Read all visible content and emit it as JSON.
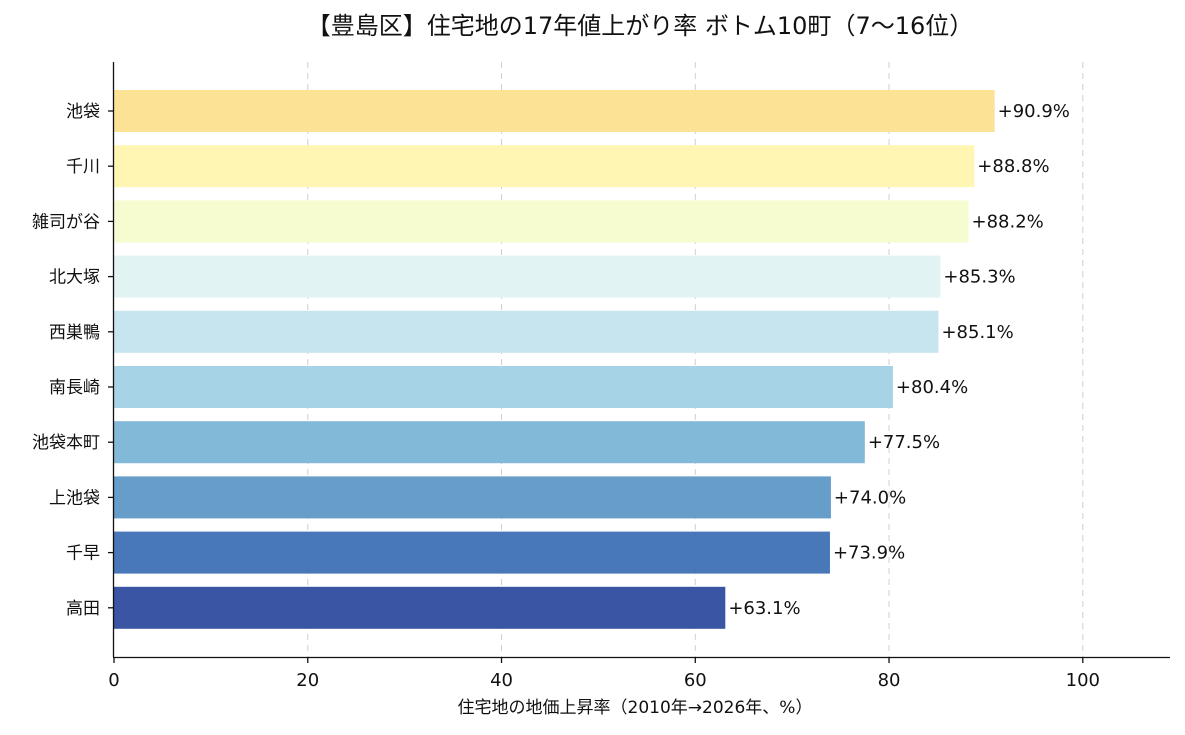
{
  "chart_data": {
    "type": "bar",
    "orientation": "horizontal",
    "title": "【豊島区】住宅地の17年値上がり率 ボトム10町（7〜16位）",
    "xlabel": "住宅地の地価上昇率（2010年→2026年、%）",
    "ylabel": "",
    "xlim": [
      0,
      109
    ],
    "xticks": [
      "0",
      "20",
      "40",
      "60",
      "80",
      "100"
    ],
    "grid": "x-dashed",
    "categories": [
      "池袋",
      "千川",
      "雑司が谷",
      "北大塚",
      "西巣鴨",
      "南長崎",
      "池袋本町",
      "上池袋",
      "千早",
      "高田"
    ],
    "values": [
      90.9,
      88.8,
      88.2,
      85.3,
      85.1,
      80.4,
      77.5,
      74.0,
      73.9,
      63.1
    ],
    "value_labels": [
      "+90.9%",
      "+88.8%",
      "+88.2%",
      "+85.3%",
      "+85.1%",
      "+80.4%",
      "+77.5%",
      "+74.0%",
      "+73.9%",
      "+63.1%"
    ],
    "colors": [
      "#fce294",
      "#fff6b4",
      "#f6fbd0",
      "#e2f3f4",
      "#c6e5ef",
      "#a6d4e6",
      "#82b8d8",
      "#669dc9",
      "#4878b7",
      "#3955a3"
    ]
  }
}
